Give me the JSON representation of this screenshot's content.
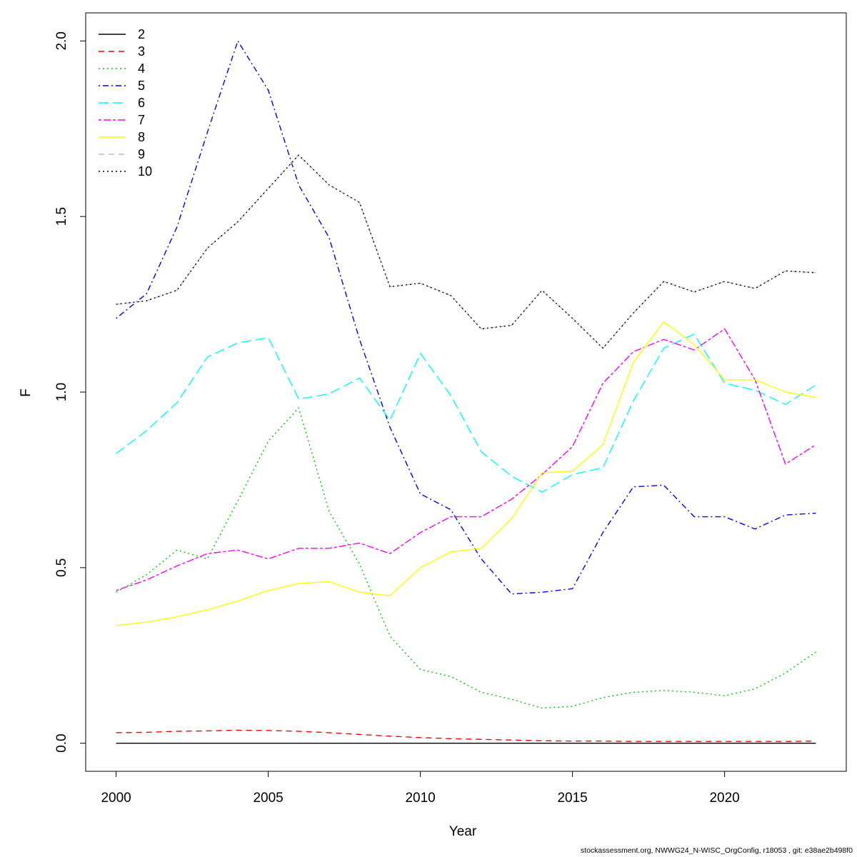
{
  "chart_data": {
    "type": "line",
    "title": "",
    "xlabel": "Year",
    "ylabel": "F",
    "xlim": [
      1999,
      2024
    ],
    "ylim": [
      -0.08,
      2.08
    ],
    "xticks": [
      2000,
      2005,
      2010,
      2015,
      2020
    ],
    "yticks": [
      0.0,
      0.5,
      1.0,
      1.5,
      2.0
    ],
    "ytick_labels": [
      "0.0",
      "0.5",
      "1.0",
      "1.5",
      "2.0"
    ],
    "grid": false,
    "legend_position": "top-left",
    "x": [
      2000,
      2001,
      2002,
      2003,
      2004,
      2005,
      2006,
      2007,
      2008,
      2009,
      2010,
      2011,
      2012,
      2013,
      2014,
      2015,
      2016,
      2017,
      2018,
      2019,
      2020,
      2021,
      2022,
      2023
    ],
    "series": [
      {
        "name": "2",
        "color": "#000000",
        "dash": "solid",
        "values": [
          0.0,
          0.0,
          0.0,
          0.0,
          0.0,
          0.0,
          0.0,
          0.0,
          0.0,
          0.0,
          0.0,
          0.0,
          0.0,
          0.0,
          0.0,
          0.0,
          0.0,
          0.0,
          0.0,
          0.0,
          0.0,
          0.0,
          0.0,
          0.0
        ]
      },
      {
        "name": "3",
        "color": "#ff0000",
        "dash": "dashed",
        "values": [
          0.03,
          0.031,
          0.034,
          0.035,
          0.037,
          0.036,
          0.034,
          0.03,
          0.025,
          0.02,
          0.016,
          0.013,
          0.011,
          0.009,
          0.007,
          0.006,
          0.006,
          0.005,
          0.005,
          0.005,
          0.005,
          0.005,
          0.005,
          0.006
        ]
      },
      {
        "name": "4",
        "color": "#00cd00",
        "dash": "dotted",
        "values": [
          0.43,
          0.48,
          0.55,
          0.525,
          0.69,
          0.86,
          0.955,
          0.66,
          0.51,
          0.305,
          0.21,
          0.19,
          0.145,
          0.125,
          0.1,
          0.105,
          0.13,
          0.145,
          0.15,
          0.145,
          0.135,
          0.155,
          0.2,
          0.26
        ]
      },
      {
        "name": "5",
        "color": "#0000ff",
        "dash": "dotdash",
        "values": [
          1.21,
          1.28,
          1.47,
          1.74,
          2.0,
          1.86,
          1.59,
          1.44,
          1.15,
          0.9,
          0.71,
          0.665,
          0.525,
          0.425,
          0.43,
          0.44,
          0.6,
          0.73,
          0.735,
          0.645,
          0.645,
          0.61,
          0.65,
          0.655
        ]
      },
      {
        "name": "6",
        "color": "#00ffff",
        "dash": "longdash",
        "values": [
          0.825,
          0.89,
          0.97,
          1.1,
          1.14,
          1.155,
          0.98,
          0.995,
          1.04,
          0.92,
          1.11,
          0.99,
          0.83,
          0.76,
          0.715,
          0.765,
          0.785,
          0.975,
          1.125,
          1.165,
          1.025,
          1.005,
          0.965,
          1.02
        ]
      },
      {
        "name": "7",
        "color": "#ff00ff",
        "dash": "twodash",
        "values": [
          0.435,
          0.465,
          0.505,
          0.54,
          0.55,
          0.525,
          0.555,
          0.555,
          0.57,
          0.54,
          0.6,
          0.645,
          0.645,
          0.695,
          0.765,
          0.845,
          1.025,
          1.115,
          1.15,
          1.12,
          1.18,
          1.035,
          0.795,
          0.85
        ]
      },
      {
        "name": "8",
        "color": "#ffff00",
        "dash": "solid",
        "values": [
          0.335,
          0.345,
          0.36,
          0.38,
          0.405,
          0.435,
          0.455,
          0.46,
          0.43,
          0.42,
          0.5,
          0.545,
          0.555,
          0.64,
          0.77,
          0.775,
          0.85,
          1.085,
          1.2,
          1.135,
          1.035,
          1.035,
          1.0,
          0.985
        ]
      },
      {
        "name": "9",
        "color": "#bebebe",
        "dash": "dashed",
        "values": [
          1.25,
          1.26,
          1.29,
          1.41,
          1.485,
          1.58,
          1.675,
          1.59,
          1.54,
          1.3,
          1.31,
          1.275,
          1.18,
          1.19,
          1.29,
          1.21,
          1.125,
          1.225,
          1.315,
          1.285,
          1.315,
          1.295,
          1.345,
          1.34
        ]
      },
      {
        "name": "10",
        "color": "#000000",
        "dash": "dotted",
        "values": [
          1.25,
          1.26,
          1.29,
          1.41,
          1.485,
          1.58,
          1.675,
          1.59,
          1.54,
          1.3,
          1.31,
          1.275,
          1.18,
          1.19,
          1.29,
          1.21,
          1.125,
          1.225,
          1.315,
          1.285,
          1.315,
          1.295,
          1.345,
          1.34
        ]
      }
    ]
  },
  "footnote": "stockassessment.org, NWWG24_N-WISC_OrgConfig, r18053 , git: e38ae2b498f0"
}
